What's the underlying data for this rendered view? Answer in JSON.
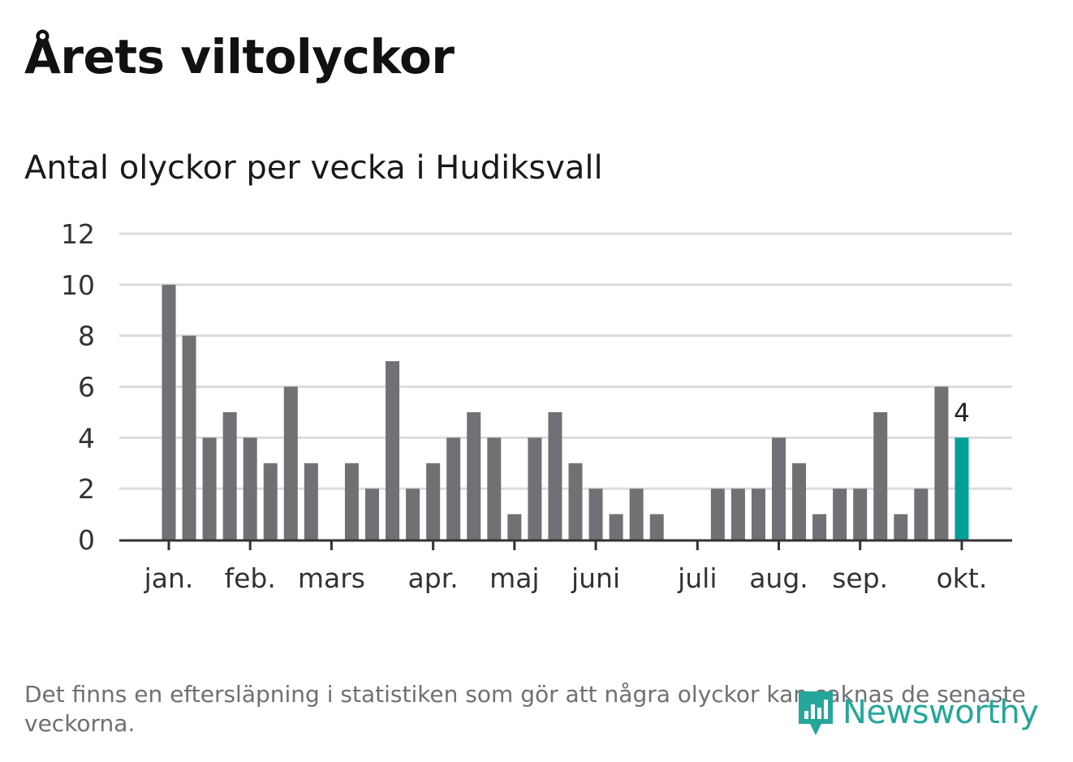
{
  "header": {
    "title": "Årets viltolyckor",
    "subtitle": "Antal olyckor per vecka i Hudiksvall"
  },
  "footer": {
    "note": "Det finns en eftersläpning i statistiken som gör att några olyckor kan saknas de senaste veckorna.",
    "logo_text": "Newsworthy",
    "logo_icon": "bar-chart-speech-bubble-icon"
  },
  "colors": {
    "bar": "#717075",
    "highlight": "#00a096",
    "grid": "#dcdcdc",
    "axis": "#333333",
    "text": "#333333",
    "logo": "#26a69a"
  },
  "chart_data": {
    "type": "bar",
    "title": "Antal olyckor per vecka i Hudiksvall",
    "xlabel": "",
    "ylabel": "",
    "ylim": [
      0,
      12
    ],
    "yticks": [
      "0",
      "2",
      "4",
      "6",
      "8",
      "10",
      "12"
    ],
    "grid": true,
    "legend": "none",
    "values": [
      10,
      8,
      4,
      5,
      4,
      3,
      6,
      3,
      0,
      3,
      2,
      7,
      2,
      3,
      4,
      5,
      4,
      1,
      4,
      5,
      3,
      2,
      1,
      2,
      1,
      0,
      0,
      2,
      2,
      2,
      4,
      3,
      1,
      2,
      2,
      5,
      1,
      2,
      6,
      4
    ],
    "highlight_index": 39,
    "highlight_label": "4",
    "month_ticks": [
      {
        "label": "jan.",
        "week": 0
      },
      {
        "label": "feb.",
        "week": 4
      },
      {
        "label": "mars",
        "week": 8
      },
      {
        "label": "apr.",
        "week": 13
      },
      {
        "label": "maj",
        "week": 17
      },
      {
        "label": "juni",
        "week": 21
      },
      {
        "label": "juli",
        "week": 26
      },
      {
        "label": "aug.",
        "week": 30
      },
      {
        "label": "sep.",
        "week": 34
      },
      {
        "label": "okt.",
        "week": 39
      }
    ]
  }
}
